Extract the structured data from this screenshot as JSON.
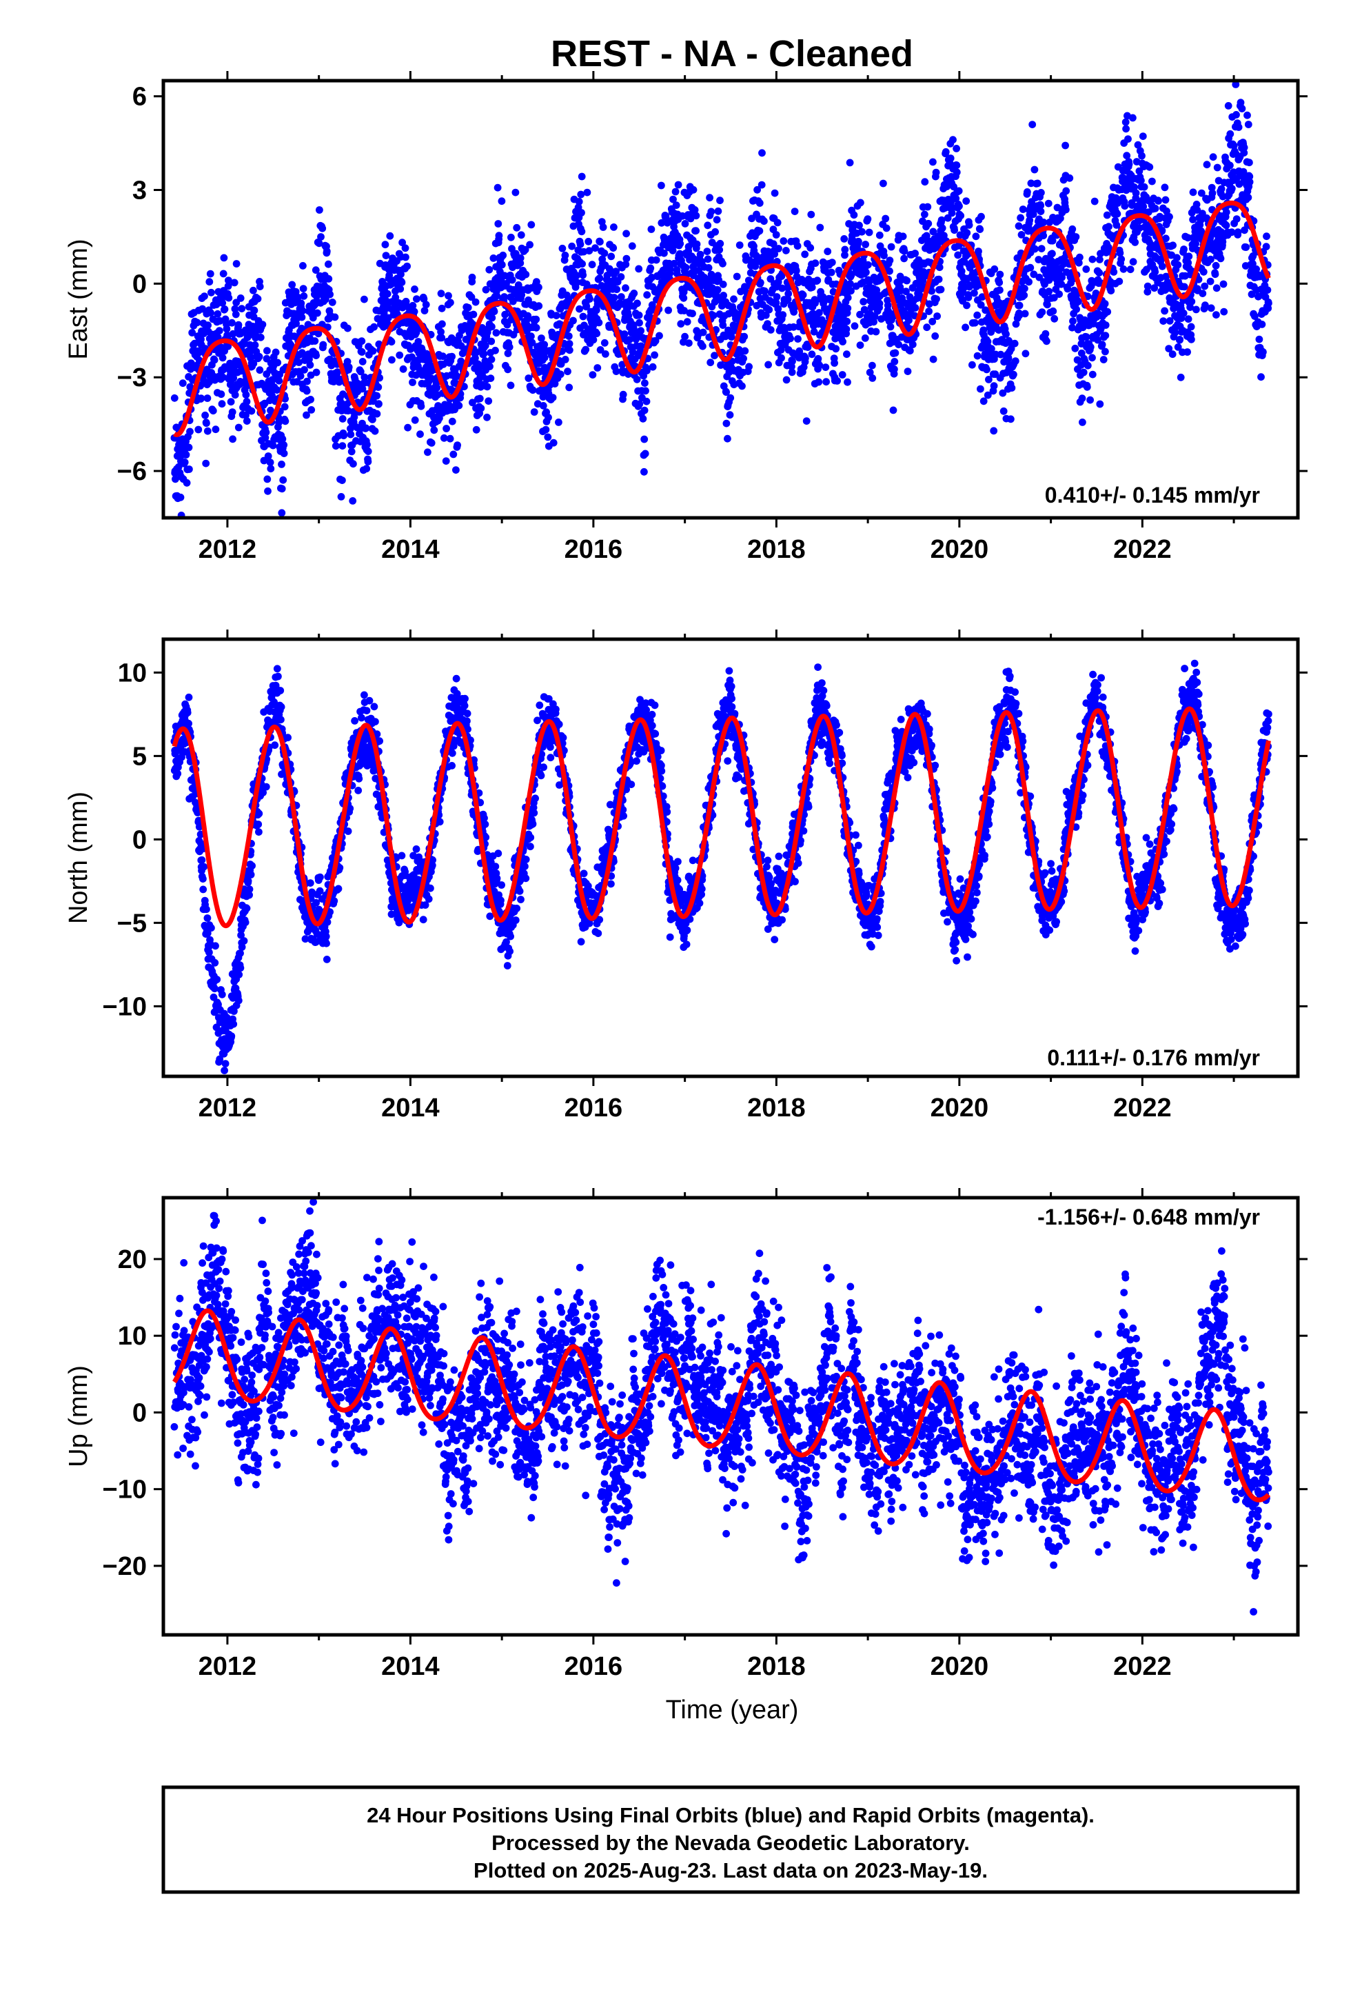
{
  "title": "REST  - NA - Cleaned",
  "colors": {
    "points": "#0000ff",
    "model": "#ff0000",
    "frame": "#000000"
  },
  "xlabel": "Time (year)",
  "footer": [
    "24 Hour Positions Using Final Orbits (blue) and Rapid Orbits (magenta).",
    "Processed by the Nevada Geodetic Laboratory.",
    "Plotted on 2025-Aug-23. Last data on 2023-May-19."
  ],
  "chart_data": [
    {
      "type": "scatter",
      "component": "east",
      "ylabel": "East (mm)",
      "rate_label": "0.410+/- 0.145 mm/yr",
      "rate_position": "bottom-right",
      "xlim": [
        2011.3,
        2023.7
      ],
      "ylim": [
        -7.5,
        6.5
      ],
      "xticks": [
        2012,
        2014,
        2016,
        2018,
        2020,
        2022
      ],
      "yticks": [
        -6,
        -3,
        0,
        3,
        6
      ],
      "grid": false,
      "data_range": [
        2011.42,
        2023.38
      ],
      "series": [
        {
          "kind": "daily-points",
          "color": "#0000ff",
          "noise_sd_mm": 1.0
        },
        {
          "kind": "model-fit",
          "color": "#ff0000",
          "model": {
            "linear": [
              [
                2011.42,
                -3.2
              ],
              [
                2023.38,
                1.6
              ]
            ],
            "annual_amp_mm": 1.4,
            "annual_peak_year_fraction": 0.95,
            "semiannual_amp_mm": 0.25,
            "semiannual_phase_fraction": 0.2
          }
        }
      ]
    },
    {
      "type": "scatter",
      "component": "north",
      "ylabel": "North (mm)",
      "rate_label": "0.111+/- 0.176 mm/yr",
      "rate_position": "bottom-right",
      "xlim": [
        2011.3,
        2023.7
      ],
      "ylim": [
        -14.2,
        12.0
      ],
      "xticks": [
        2012,
        2014,
        2016,
        2018,
        2020,
        2022
      ],
      "yticks": [
        -10,
        -5,
        0,
        5,
        10
      ],
      "grid": false,
      "data_range": [
        2011.42,
        2023.38
      ],
      "series": [
        {
          "kind": "daily-points",
          "color": "#0000ff",
          "noise_sd_mm": 0.9
        },
        {
          "kind": "model-fit",
          "color": "#ff0000",
          "model": {
            "linear": [
              [
                2011.42,
                0.6
              ],
              [
                2023.38,
                1.9
              ]
            ],
            "annual_amp_mm": 5.9,
            "annual_peak_year_fraction": 0.5,
            "semiannual_amp_mm": 0.3,
            "semiannual_phase_fraction": 0.1
          }
        }
      ]
    },
    {
      "type": "scatter",
      "component": "up",
      "ylabel": "Up (mm)",
      "rate_label": "-1.156+/- 0.648 mm/yr",
      "rate_position": "top-right",
      "xlim": [
        2011.3,
        2023.7
      ],
      "ylim": [
        -29,
        28
      ],
      "xticks": [
        2012,
        2014,
        2016,
        2018,
        2020,
        2022
      ],
      "yticks": [
        -20,
        -10,
        0,
        10,
        20
      ],
      "grid": false,
      "data_range": [
        2011.42,
        2023.38
      ],
      "series": [
        {
          "kind": "daily-points",
          "color": "#0000ff",
          "noise_sd_mm": 4.5
        },
        {
          "kind": "model-fit",
          "color": "#ff0000",
          "model": {
            "linear": [
              [
                2011.42,
                7.5
              ],
              [
                2023.38,
                -6.5
              ]
            ],
            "annual_amp_mm": 5.6,
            "annual_peak_year_fraction": 0.78,
            "semiannual_amp_mm": 0.6,
            "semiannual_phase_fraction": 0.3
          }
        }
      ]
    }
  ]
}
